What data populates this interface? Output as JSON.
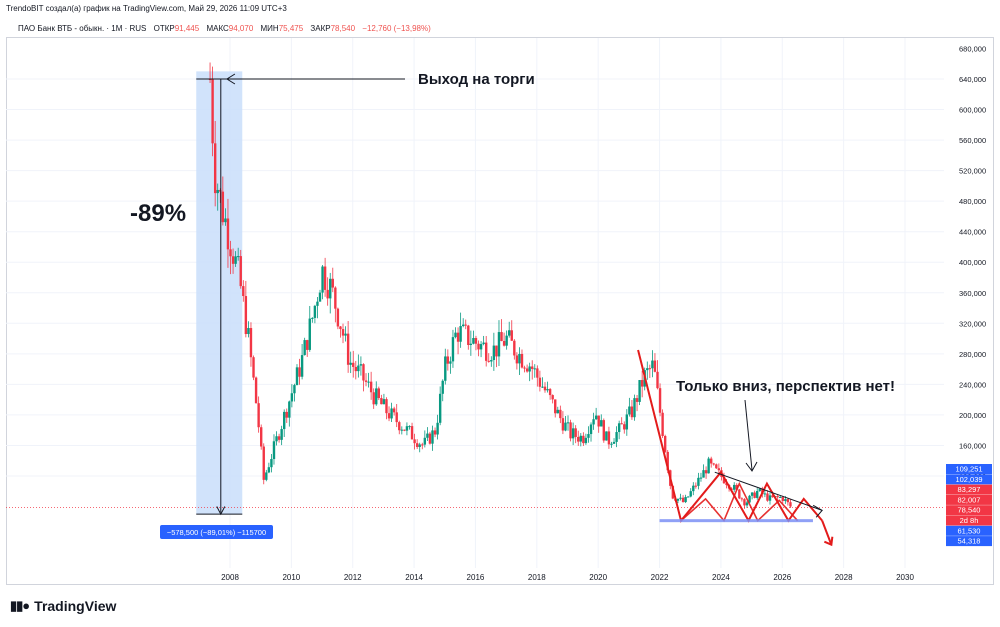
{
  "header": {
    "title": "TrendoBIT создал(а) график на TradingView.com, Май 29, 2026 11:09 UTC+3"
  },
  "ohlc": {
    "symbol": "ПАО Банк ВТБ - обыкн. · 1M · RUS",
    "open_label": "ОТКР",
    "open": "91,445",
    "high_label": "МАКС",
    "high": "94,070",
    "low_label": "МИН",
    "low": "75,475",
    "close_label": "ЗАКР",
    "close": "78,540",
    "change": "−12,760 (−13,98%)"
  },
  "brand": {
    "name": "TradingView",
    "logo": "tradingview-logo"
  },
  "colors": {
    "up": "#089981",
    "down": "#f23645",
    "range_fill": "#c9defa",
    "range_label": "#2962ff",
    "trend": "#e31b1b",
    "support": "#7b8ff5"
  },
  "annotations": {
    "ipo": "Выход на торги",
    "drop": "-89%",
    "outlook": "Только вниз, перспектив нет!",
    "range_label": "−578,500 (−89,01%) −115700"
  },
  "chart_data": {
    "type": "candlestick",
    "symbol": "ПАО Банк ВТБ",
    "interval": "1M",
    "x_range": [
      2006.0,
      2030.9
    ],
    "x_ticks": [
      2008,
      2010,
      2012,
      2014,
      2016,
      2018,
      2020,
      2022,
      2024,
      2026,
      2028,
      2030
    ],
    "y_range": [
      20,
      700
    ],
    "y_ticks": [
      640,
      600,
      560,
      520,
      480,
      440,
      400,
      360,
      320,
      280,
      240,
      200,
      160,
      120
    ],
    "y_tick_labels": [
      "640,000",
      "600,000",
      "560,000",
      "520,000",
      "480,000",
      "440,000",
      "400,000",
      "360,000",
      "320,000",
      "280,000",
      "240,000",
      "200,000",
      "160,000",
      "120,000"
    ],
    "y_tick_top": "680,000",
    "price_badges": [
      {
        "label": "109,251",
        "color": "#2962ff"
      },
      {
        "label": "102,039",
        "color": "#2962ff"
      },
      {
        "label": "83,297",
        "color": "#f23645"
      },
      {
        "label": "82,007",
        "color": "#f23645"
      },
      {
        "label": "78,540",
        "color": "#f23645"
      },
      {
        "label": "2d 8h",
        "color": "#f23645"
      },
      {
        "label": "61,530",
        "color": "#2962ff"
      },
      {
        "label": "54,318",
        "color": "#2962ff"
      }
    ],
    "series_close": [
      [
        2007.35,
        640
      ],
      [
        2007.5,
        520
      ],
      [
        2007.75,
        470
      ],
      [
        2008.0,
        430
      ],
      [
        2008.3,
        380
      ],
      [
        2008.6,
        300
      ],
      [
        2008.9,
        200
      ],
      [
        2009.1,
        115
      ],
      [
        2009.5,
        165
      ],
      [
        2009.9,
        215
      ],
      [
        2010.3,
        265
      ],
      [
        2010.7,
        330
      ],
      [
        2011.0,
        390
      ],
      [
        2011.3,
        365
      ],
      [
        2011.6,
        320
      ],
      [
        2011.9,
        270
      ],
      [
        2012.3,
        250
      ],
      [
        2012.7,
        225
      ],
      [
        2013.1,
        205
      ],
      [
        2013.5,
        190
      ],
      [
        2013.9,
        175
      ],
      [
        2014.3,
        160
      ],
      [
        2014.7,
        180
      ],
      [
        2015.0,
        260
      ],
      [
        2015.4,
        310
      ],
      [
        2015.8,
        300
      ],
      [
        2016.2,
        290
      ],
      [
        2016.6,
        285
      ],
      [
        2017.0,
        300
      ],
      [
        2017.4,
        280
      ],
      [
        2017.8,
        265
      ],
      [
        2018.3,
        230
      ],
      [
        2018.7,
        200
      ],
      [
        2019.1,
        175
      ],
      [
        2019.5,
        170
      ],
      [
        2019.9,
        205
      ],
      [
        2020.3,
        165
      ],
      [
        2020.7,
        180
      ],
      [
        2021.1,
        205
      ],
      [
        2021.5,
        250
      ],
      [
        2021.8,
        265
      ],
      [
        2022.1,
        180
      ],
      [
        2022.4,
        95
      ],
      [
        2022.8,
        85
      ],
      [
        2023.2,
        110
      ],
      [
        2023.6,
        135
      ],
      [
        2024.0,
        120
      ],
      [
        2024.4,
        105
      ],
      [
        2024.8,
        85
      ],
      [
        2025.2,
        100
      ],
      [
        2025.6,
        90
      ],
      [
        2026.0,
        92
      ],
      [
        2026.3,
        78.54
      ]
    ]
  }
}
